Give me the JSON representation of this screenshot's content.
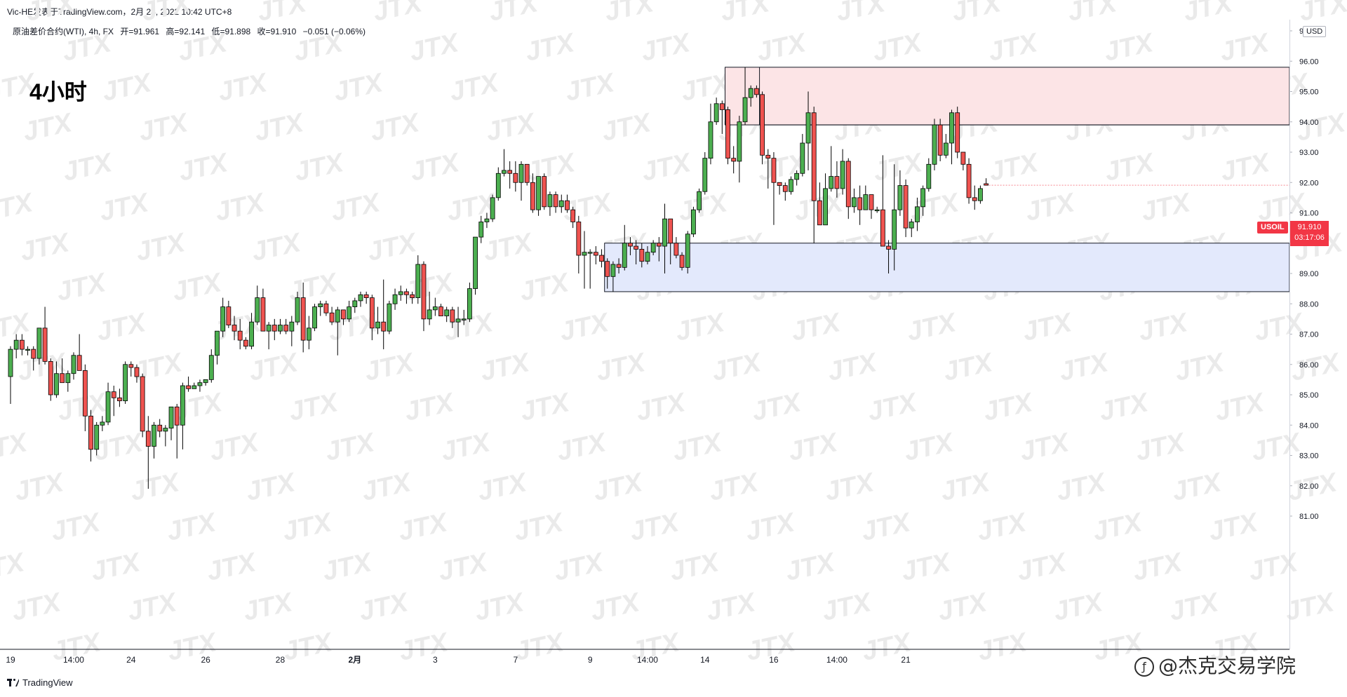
{
  "header": {
    "meta": "Vic-HE发表于TradingView.com，2月 23, 2022 10:42 UTC+8"
  },
  "legend": {
    "instrument": "原油差价合约(WTI), 4h, FX",
    "open": "开=91.961",
    "high": "高=92.141",
    "low": "低=91.898",
    "close": "收=91.910",
    "change": "−0.051 (−0.06%)"
  },
  "timeframe_label": "4小时",
  "price_axis": {
    "currency": "USD",
    "symbol": "USOIL",
    "last_price": "91.910",
    "countdown": "03:17:06"
  },
  "footer": {
    "logo_text": "TradingView",
    "brand_text": "@杰克交易学院"
  },
  "watermark": "JTX",
  "colors": {
    "up": "#26a69a",
    "up_fill": "#4caf50",
    "down": "#ef5350",
    "badge": "#f23645",
    "resistance_zone": "#fce4e6",
    "support_zone": "#e3e9fc"
  },
  "chart_data": {
    "type": "candlestick",
    "ylim": [
      80.6,
      97.2
    ],
    "yticks": [
      81,
      82,
      83,
      84,
      85,
      86,
      87,
      88,
      89,
      90,
      91,
      92,
      93,
      94,
      95,
      96,
      97
    ],
    "xticks": [
      "19",
      "14:00",
      "24",
      "26",
      "28",
      "2月",
      "3",
      "7",
      "9",
      "14:00",
      "14",
      "16",
      "14:00",
      "21"
    ],
    "zones": [
      {
        "name": "resistance",
        "start_bar": 125,
        "y_low": 93.9,
        "y_high": 95.8,
        "midline_start_bar": 131
      },
      {
        "name": "support",
        "start_bar": 104,
        "y_low": 88.4,
        "y_high": 90.0
      }
    ],
    "candles": [
      {
        "o": 85.6,
        "h": 86.6,
        "l": 84.7,
        "c": 86.5
      },
      {
        "o": 86.5,
        "h": 87.0,
        "l": 86.2,
        "c": 86.8
      },
      {
        "o": 86.8,
        "h": 87.0,
        "l": 86.3,
        "c": 86.5
      },
      {
        "o": 86.5,
        "h": 86.6,
        "l": 86.3,
        "c": 86.5
      },
      {
        "o": 86.5,
        "h": 86.6,
        "l": 85.8,
        "c": 86.2
      },
      {
        "o": 86.2,
        "h": 87.2,
        "l": 86.0,
        "c": 87.2
      },
      {
        "o": 87.2,
        "h": 87.9,
        "l": 86.0,
        "c": 86.1
      },
      {
        "o": 86.1,
        "h": 86.2,
        "l": 84.8,
        "c": 85.0
      },
      {
        "o": 85.0,
        "h": 86.1,
        "l": 84.9,
        "c": 85.7
      },
      {
        "o": 85.7,
        "h": 86.2,
        "l": 85.4,
        "c": 85.4
      },
      {
        "o": 85.4,
        "h": 85.8,
        "l": 85.1,
        "c": 85.7
      },
      {
        "o": 85.7,
        "h": 86.4,
        "l": 85.5,
        "c": 86.3
      },
      {
        "o": 86.3,
        "h": 87.0,
        "l": 85.8,
        "c": 85.8
      },
      {
        "o": 85.8,
        "h": 86.0,
        "l": 83.8,
        "c": 84.3
      },
      {
        "o": 84.3,
        "h": 84.5,
        "l": 82.8,
        "c": 83.2
      },
      {
        "o": 83.2,
        "h": 84.1,
        "l": 83.0,
        "c": 84.0
      },
      {
        "o": 84.0,
        "h": 84.3,
        "l": 83.8,
        "c": 84.1
      },
      {
        "o": 84.1,
        "h": 85.4,
        "l": 84.0,
        "c": 85.1
      },
      {
        "o": 85.1,
        "h": 85.3,
        "l": 84.3,
        "c": 84.9
      },
      {
        "o": 84.9,
        "h": 85.2,
        "l": 84.6,
        "c": 84.8
      },
      {
        "o": 84.8,
        "h": 86.1,
        "l": 84.7,
        "c": 86.0
      },
      {
        "o": 86.0,
        "h": 86.1,
        "l": 85.6,
        "c": 85.9
      },
      {
        "o": 85.9,
        "h": 86.0,
        "l": 85.4,
        "c": 85.6
      },
      {
        "o": 85.6,
        "h": 85.7,
        "l": 83.6,
        "c": 83.8
      },
      {
        "o": 83.8,
        "h": 84.3,
        "l": 81.9,
        "c": 83.3
      },
      {
        "o": 83.3,
        "h": 84.1,
        "l": 82.9,
        "c": 84.0
      },
      {
        "o": 84.0,
        "h": 84.2,
        "l": 83.6,
        "c": 83.8
      },
      {
        "o": 83.8,
        "h": 84.0,
        "l": 83.3,
        "c": 83.9
      },
      {
        "o": 83.9,
        "h": 84.6,
        "l": 83.5,
        "c": 84.6
      },
      {
        "o": 84.6,
        "h": 84.7,
        "l": 82.9,
        "c": 84.0
      },
      {
        "o": 84.0,
        "h": 85.4,
        "l": 83.2,
        "c": 85.3
      },
      {
        "o": 85.3,
        "h": 85.6,
        "l": 85.1,
        "c": 85.2
      },
      {
        "o": 85.2,
        "h": 85.4,
        "l": 85.2,
        "c": 85.3
      },
      {
        "o": 85.3,
        "h": 85.5,
        "l": 85.1,
        "c": 85.4
      },
      {
        "o": 85.4,
        "h": 85.5,
        "l": 85.3,
        "c": 85.5
      },
      {
        "o": 85.5,
        "h": 86.5,
        "l": 85.4,
        "c": 86.3
      },
      {
        "o": 86.3,
        "h": 87.1,
        "l": 86.0,
        "c": 87.1
      },
      {
        "o": 87.1,
        "h": 88.2,
        "l": 86.9,
        "c": 87.9
      },
      {
        "o": 87.9,
        "h": 88.1,
        "l": 87.2,
        "c": 87.3
      },
      {
        "o": 87.3,
        "h": 87.6,
        "l": 86.8,
        "c": 87.1
      },
      {
        "o": 87.1,
        "h": 87.5,
        "l": 86.5,
        "c": 86.8
      },
      {
        "o": 86.8,
        "h": 86.9,
        "l": 86.5,
        "c": 86.6
      },
      {
        "o": 86.6,
        "h": 87.7,
        "l": 86.5,
        "c": 87.4
      },
      {
        "o": 87.4,
        "h": 88.6,
        "l": 87.3,
        "c": 88.2
      },
      {
        "o": 88.2,
        "h": 88.5,
        "l": 87.1,
        "c": 87.1
      },
      {
        "o": 87.1,
        "h": 87.4,
        "l": 86.5,
        "c": 87.3
      },
      {
        "o": 87.3,
        "h": 87.5,
        "l": 86.8,
        "c": 87.1
      },
      {
        "o": 87.1,
        "h": 87.5,
        "l": 87.0,
        "c": 87.3
      },
      {
        "o": 87.3,
        "h": 87.5,
        "l": 87.0,
        "c": 87.1
      },
      {
        "o": 87.1,
        "h": 87.6,
        "l": 86.6,
        "c": 87.4
      },
      {
        "o": 87.4,
        "h": 88.4,
        "l": 87.3,
        "c": 88.2
      },
      {
        "o": 88.2,
        "h": 88.7,
        "l": 86.4,
        "c": 86.8
      },
      {
        "o": 86.8,
        "h": 87.6,
        "l": 86.5,
        "c": 87.2
      },
      {
        "o": 87.2,
        "h": 88.0,
        "l": 87.1,
        "c": 87.9
      },
      {
        "o": 87.9,
        "h": 88.1,
        "l": 87.6,
        "c": 88.0
      },
      {
        "o": 88.0,
        "h": 88.1,
        "l": 87.6,
        "c": 87.7
      },
      {
        "o": 87.7,
        "h": 87.9,
        "l": 87.3,
        "c": 87.4
      },
      {
        "o": 87.4,
        "h": 87.9,
        "l": 86.3,
        "c": 87.8
      },
      {
        "o": 87.8,
        "h": 87.8,
        "l": 87.3,
        "c": 87.5
      },
      {
        "o": 87.5,
        "h": 88.1,
        "l": 87.4,
        "c": 87.9
      },
      {
        "o": 87.9,
        "h": 88.2,
        "l": 87.7,
        "c": 88.1
      },
      {
        "o": 88.1,
        "h": 88.4,
        "l": 87.9,
        "c": 88.3
      },
      {
        "o": 88.3,
        "h": 88.4,
        "l": 88.0,
        "c": 88.2
      },
      {
        "o": 88.2,
        "h": 88.3,
        "l": 86.8,
        "c": 87.2
      },
      {
        "o": 87.2,
        "h": 87.9,
        "l": 87.0,
        "c": 87.4
      },
      {
        "o": 87.4,
        "h": 88.8,
        "l": 86.5,
        "c": 87.1
      },
      {
        "o": 87.1,
        "h": 88.1,
        "l": 87.0,
        "c": 88.0
      },
      {
        "o": 88.0,
        "h": 88.5,
        "l": 87.8,
        "c": 88.3
      },
      {
        "o": 88.3,
        "h": 88.6,
        "l": 88.1,
        "c": 88.4
      },
      {
        "o": 88.4,
        "h": 88.5,
        "l": 88.0,
        "c": 88.3
      },
      {
        "o": 88.3,
        "h": 88.4,
        "l": 88.0,
        "c": 88.2
      },
      {
        "o": 88.2,
        "h": 89.6,
        "l": 88.0,
        "c": 89.3
      },
      {
        "o": 89.3,
        "h": 89.4,
        "l": 87.1,
        "c": 87.5
      },
      {
        "o": 87.5,
        "h": 88.4,
        "l": 87.3,
        "c": 87.8
      },
      {
        "o": 87.8,
        "h": 88.2,
        "l": 87.6,
        "c": 87.9
      },
      {
        "o": 87.9,
        "h": 88.0,
        "l": 87.6,
        "c": 87.6
      },
      {
        "o": 87.6,
        "h": 87.9,
        "l": 87.4,
        "c": 87.8
      },
      {
        "o": 87.8,
        "h": 87.9,
        "l": 87.2,
        "c": 87.4
      },
      {
        "o": 87.4,
        "h": 87.9,
        "l": 86.9,
        "c": 87.5
      },
      {
        "o": 87.5,
        "h": 87.8,
        "l": 87.3,
        "c": 87.5
      },
      {
        "o": 87.5,
        "h": 88.7,
        "l": 87.4,
        "c": 88.5
      },
      {
        "o": 88.5,
        "h": 90.2,
        "l": 88.3,
        "c": 90.2
      },
      {
        "o": 90.2,
        "h": 90.9,
        "l": 90.0,
        "c": 90.7
      },
      {
        "o": 90.7,
        "h": 91.0,
        "l": 90.5,
        "c": 90.8
      },
      {
        "o": 90.8,
        "h": 91.6,
        "l": 90.7,
        "c": 91.5
      },
      {
        "o": 91.5,
        "h": 92.5,
        "l": 91.4,
        "c": 92.3
      },
      {
        "o": 92.3,
        "h": 93.1,
        "l": 92.2,
        "c": 92.4
      },
      {
        "o": 92.4,
        "h": 92.7,
        "l": 91.8,
        "c": 92.3
      },
      {
        "o": 92.3,
        "h": 92.7,
        "l": 91.7,
        "c": 92.0
      },
      {
        "o": 92.0,
        "h": 92.7,
        "l": 91.4,
        "c": 92.6
      },
      {
        "o": 92.6,
        "h": 92.6,
        "l": 91.9,
        "c": 92.0
      },
      {
        "o": 92.0,
        "h": 92.3,
        "l": 91.0,
        "c": 91.1
      },
      {
        "o": 91.1,
        "h": 92.2,
        "l": 90.9,
        "c": 92.2
      },
      {
        "o": 92.2,
        "h": 92.3,
        "l": 91.1,
        "c": 91.2
      },
      {
        "o": 91.2,
        "h": 91.7,
        "l": 90.9,
        "c": 91.6
      },
      {
        "o": 91.6,
        "h": 91.7,
        "l": 91.0,
        "c": 91.2
      },
      {
        "o": 91.2,
        "h": 91.6,
        "l": 91.0,
        "c": 91.4
      },
      {
        "o": 91.4,
        "h": 91.6,
        "l": 91.0,
        "c": 91.1
      },
      {
        "o": 91.1,
        "h": 91.2,
        "l": 90.5,
        "c": 90.7
      },
      {
        "o": 90.7,
        "h": 90.9,
        "l": 89.0,
        "c": 89.6
      },
      {
        "o": 89.6,
        "h": 90.4,
        "l": 88.5,
        "c": 89.7
      },
      {
        "o": 89.7,
        "h": 89.8,
        "l": 88.5,
        "c": 89.7
      },
      {
        "o": 89.7,
        "h": 89.9,
        "l": 89.3,
        "c": 89.6
      },
      {
        "o": 89.6,
        "h": 89.8,
        "l": 89.2,
        "c": 89.4
      },
      {
        "o": 89.4,
        "h": 89.5,
        "l": 88.5,
        "c": 88.9
      },
      {
        "o": 88.9,
        "h": 89.4,
        "l": 88.4,
        "c": 89.3
      },
      {
        "o": 89.3,
        "h": 89.5,
        "l": 89.0,
        "c": 89.2
      },
      {
        "o": 89.2,
        "h": 90.6,
        "l": 89.1,
        "c": 90.0
      },
      {
        "o": 90.0,
        "h": 90.2,
        "l": 89.6,
        "c": 89.9
      },
      {
        "o": 89.9,
        "h": 90.1,
        "l": 89.3,
        "c": 89.8
      },
      {
        "o": 89.8,
        "h": 90.0,
        "l": 89.2,
        "c": 89.4
      },
      {
        "o": 89.4,
        "h": 89.9,
        "l": 89.3,
        "c": 89.7
      },
      {
        "o": 89.7,
        "h": 90.1,
        "l": 89.6,
        "c": 90.0
      },
      {
        "o": 90.0,
        "h": 90.2,
        "l": 89.4,
        "c": 89.9
      },
      {
        "o": 89.9,
        "h": 91.3,
        "l": 89.0,
        "c": 90.8
      },
      {
        "o": 90.8,
        "h": 90.8,
        "l": 89.3,
        "c": 90.0
      },
      {
        "o": 90.0,
        "h": 90.2,
        "l": 89.5,
        "c": 89.6
      },
      {
        "o": 89.6,
        "h": 89.7,
        "l": 89.1,
        "c": 89.2
      },
      {
        "o": 89.2,
        "h": 90.4,
        "l": 89.0,
        "c": 90.3
      },
      {
        "o": 90.3,
        "h": 91.2,
        "l": 90.2,
        "c": 91.1
      },
      {
        "o": 91.1,
        "h": 91.8,
        "l": 91.0,
        "c": 91.7
      },
      {
        "o": 91.7,
        "h": 93.0,
        "l": 91.6,
        "c": 92.8
      },
      {
        "o": 92.8,
        "h": 94.6,
        "l": 92.6,
        "c": 94.0
      },
      {
        "o": 94.0,
        "h": 94.8,
        "l": 93.9,
        "c": 94.6
      },
      {
        "o": 94.6,
        "h": 94.7,
        "l": 93.6,
        "c": 94.4
      },
      {
        "o": 94.4,
        "h": 94.5,
        "l": 92.6,
        "c": 92.8
      },
      {
        "o": 92.8,
        "h": 93.2,
        "l": 92.3,
        "c": 92.7
      },
      {
        "o": 92.7,
        "h": 94.2,
        "l": 92.0,
        "c": 94.0
      },
      {
        "o": 94.0,
        "h": 95.8,
        "l": 93.9,
        "c": 94.8
      },
      {
        "o": 94.8,
        "h": 95.2,
        "l": 94.5,
        "c": 95.1
      },
      {
        "o": 95.1,
        "h": 95.2,
        "l": 94.8,
        "c": 94.9
      },
      {
        "o": 94.9,
        "h": 95.0,
        "l": 92.6,
        "c": 92.9
      },
      {
        "o": 92.9,
        "h": 93.1,
        "l": 91.8,
        "c": 92.8
      },
      {
        "o": 92.8,
        "h": 93.0,
        "l": 90.6,
        "c": 92.0
      },
      {
        "o": 92.0,
        "h": 92.0,
        "l": 91.6,
        "c": 91.9
      },
      {
        "o": 91.9,
        "h": 92.0,
        "l": 91.4,
        "c": 91.7
      },
      {
        "o": 91.7,
        "h": 92.2,
        "l": 91.6,
        "c": 92.1
      },
      {
        "o": 92.1,
        "h": 92.4,
        "l": 91.9,
        "c": 92.3
      },
      {
        "o": 92.3,
        "h": 93.6,
        "l": 92.2,
        "c": 93.3
      },
      {
        "o": 93.3,
        "h": 95.0,
        "l": 92.4,
        "c": 94.3
      },
      {
        "o": 94.3,
        "h": 94.5,
        "l": 90.0,
        "c": 91.4
      },
      {
        "o": 91.4,
        "h": 92.0,
        "l": 90.6,
        "c": 90.6
      },
      {
        "o": 90.6,
        "h": 92.3,
        "l": 90.6,
        "c": 91.8
      },
      {
        "o": 91.8,
        "h": 93.2,
        "l": 91.7,
        "c": 92.2
      },
      {
        "o": 92.2,
        "h": 92.7,
        "l": 91.5,
        "c": 91.8
      },
      {
        "o": 91.8,
        "h": 93.1,
        "l": 91.6,
        "c": 92.7
      },
      {
        "o": 92.7,
        "h": 92.8,
        "l": 90.8,
        "c": 91.2
      },
      {
        "o": 91.2,
        "h": 91.8,
        "l": 91.0,
        "c": 91.5
      },
      {
        "o": 91.5,
        "h": 91.9,
        "l": 90.6,
        "c": 91.1
      },
      {
        "o": 91.1,
        "h": 91.9,
        "l": 91.1,
        "c": 91.6
      },
      {
        "o": 91.6,
        "h": 91.6,
        "l": 90.8,
        "c": 91.1
      },
      {
        "o": 91.1,
        "h": 91.2,
        "l": 91.0,
        "c": 91.1
      },
      {
        "o": 91.1,
        "h": 92.9,
        "l": 89.9,
        "c": 89.9
      },
      {
        "o": 89.9,
        "h": 90.1,
        "l": 89.0,
        "c": 89.8
      },
      {
        "o": 89.8,
        "h": 92.6,
        "l": 89.1,
        "c": 91.1
      },
      {
        "o": 91.1,
        "h": 92.4,
        "l": 90.9,
        "c": 91.9
      },
      {
        "o": 91.9,
        "h": 92.1,
        "l": 90.2,
        "c": 90.5
      },
      {
        "o": 90.5,
        "h": 90.8,
        "l": 90.2,
        "c": 90.7
      },
      {
        "o": 90.7,
        "h": 91.5,
        "l": 90.4,
        "c": 91.2
      },
      {
        "o": 91.2,
        "h": 91.9,
        "l": 90.9,
        "c": 91.8
      },
      {
        "o": 91.8,
        "h": 92.8,
        "l": 91.7,
        "c": 92.6
      },
      {
        "o": 92.6,
        "h": 94.1,
        "l": 92.4,
        "c": 93.9
      },
      {
        "o": 93.9,
        "h": 94.1,
        "l": 92.7,
        "c": 92.9
      },
      {
        "o": 92.9,
        "h": 93.6,
        "l": 92.8,
        "c": 93.3
      },
      {
        "o": 93.3,
        "h": 94.4,
        "l": 92.6,
        "c": 94.3
      },
      {
        "o": 94.3,
        "h": 94.5,
        "l": 92.8,
        "c": 93.0
      },
      {
        "o": 93.0,
        "h": 93.0,
        "l": 92.4,
        "c": 92.6
      },
      {
        "o": 92.6,
        "h": 92.8,
        "l": 91.3,
        "c": 91.5
      },
      {
        "o": 91.5,
        "h": 91.9,
        "l": 91.1,
        "c": 91.4
      },
      {
        "o": 91.4,
        "h": 91.9,
        "l": 91.3,
        "c": 91.8
      },
      {
        "o": 91.96,
        "h": 92.14,
        "l": 91.9,
        "c": 91.91
      }
    ]
  }
}
